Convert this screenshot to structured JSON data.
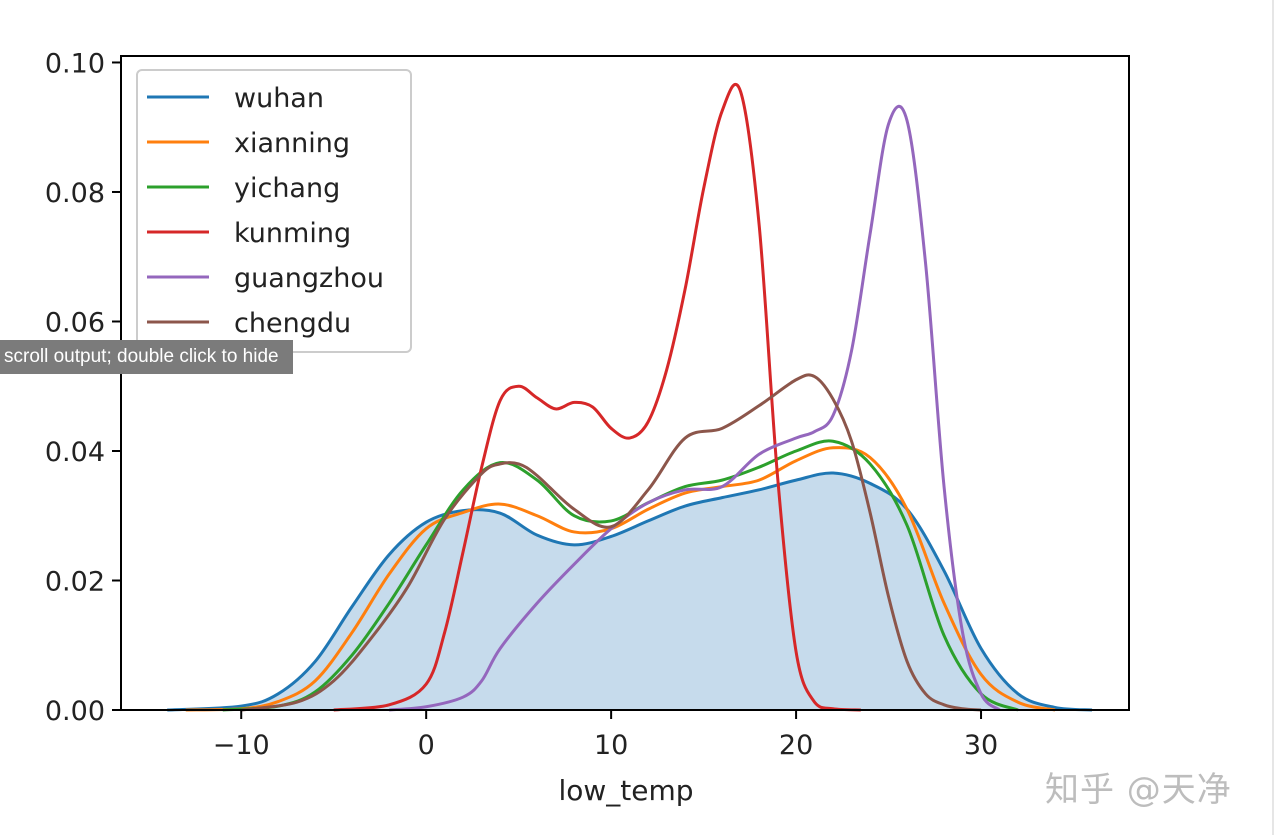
{
  "tooltip_text": "scroll output; double click to hide",
  "watermark_text": "知乎 @天净",
  "colors": {
    "wuhan": "#1f77b4",
    "xianning": "#ff7f0e",
    "yichang": "#2ca02c",
    "kunming": "#d62728",
    "guangzhou": "#9467bd",
    "chengdu": "#8c564b",
    "fill": "#c6dbec"
  },
  "chart_data": {
    "type": "line",
    "title": "",
    "xlabel": "low_temp",
    "ylabel": "",
    "xlim": [
      -16.5,
      38
    ],
    "ylim": [
      0,
      0.101
    ],
    "x_ticks": [
      -10,
      0,
      10,
      20,
      30
    ],
    "x_tick_labels": [
      "−10",
      "0",
      "10",
      "20",
      "30"
    ],
    "y_ticks": [
      0,
      0.02,
      0.04,
      0.06,
      0.08,
      0.1
    ],
    "y_tick_labels": [
      "0.00",
      "0.02",
      "0.04",
      "0.06",
      "0.08",
      "0.10"
    ],
    "grid": false,
    "legend_position": "top-left",
    "filled_series": "wuhan",
    "series": [
      {
        "name": "wuhan",
        "color": "#1f77b4",
        "x": [
          -14,
          -10,
          -8,
          -6,
          -4,
          -2,
          0,
          2,
          4,
          6,
          8,
          10,
          12,
          14,
          16,
          18,
          20,
          22,
          24,
          26,
          28,
          30,
          32,
          34,
          36
        ],
        "y": [
          0,
          0.0006,
          0.0025,
          0.0075,
          0.016,
          0.024,
          0.029,
          0.0308,
          0.0304,
          0.027,
          0.0255,
          0.0268,
          0.0292,
          0.0315,
          0.0328,
          0.034,
          0.0355,
          0.0366,
          0.035,
          0.031,
          0.0215,
          0.0095,
          0.0025,
          0.0004,
          0
        ]
      },
      {
        "name": "xianning",
        "color": "#ff7f0e",
        "x": [
          -13,
          -10,
          -8,
          -6,
          -4,
          -2,
          0,
          2,
          4,
          6,
          8,
          10,
          12,
          14,
          16,
          18,
          20,
          22,
          24,
          26,
          28,
          30,
          32,
          34
        ],
        "y": [
          0,
          0.0002,
          0.0013,
          0.0045,
          0.012,
          0.021,
          0.028,
          0.0305,
          0.0318,
          0.03,
          0.0275,
          0.028,
          0.031,
          0.0335,
          0.0345,
          0.0355,
          0.0385,
          0.0405,
          0.039,
          0.031,
          0.0165,
          0.0055,
          0.0012,
          0
        ]
      },
      {
        "name": "yichang",
        "color": "#2ca02c",
        "x": [
          -11,
          -8,
          -6,
          -4,
          -2,
          0,
          2,
          4,
          6,
          8,
          10,
          12,
          14,
          16,
          18,
          20,
          22,
          24,
          26,
          28,
          30,
          32
        ],
        "y": [
          0,
          0.0006,
          0.0028,
          0.0085,
          0.0165,
          0.0255,
          0.034,
          0.0382,
          0.0355,
          0.03,
          0.0292,
          0.032,
          0.0345,
          0.0355,
          0.0375,
          0.04,
          0.0415,
          0.038,
          0.0285,
          0.0115,
          0.0025,
          0
        ]
      },
      {
        "name": "kunming",
        "color": "#d62728",
        "x": [
          -5,
          -2,
          0,
          1,
          2,
          3,
          4,
          5,
          6,
          7,
          8,
          9,
          10,
          11,
          12,
          13,
          14,
          15,
          16,
          17,
          18,
          19,
          20,
          21,
          22,
          23.5
        ],
        "y": [
          0,
          0.0008,
          0.004,
          0.012,
          0.0245,
          0.0375,
          0.0478,
          0.05,
          0.0482,
          0.0465,
          0.0475,
          0.0468,
          0.0435,
          0.042,
          0.0445,
          0.0525,
          0.065,
          0.0805,
          0.0925,
          0.0955,
          0.075,
          0.036,
          0.009,
          0.0012,
          0.0002,
          0
        ]
      },
      {
        "name": "guangzhou",
        "color": "#9467bd",
        "x": [
          -2,
          0,
          2,
          3,
          4,
          6,
          8,
          10,
          12,
          14,
          16,
          18,
          20,
          21,
          22,
          23,
          24,
          25,
          26,
          27,
          28,
          29,
          30,
          31
        ],
        "y": [
          0,
          0.0005,
          0.002,
          0.0045,
          0.0095,
          0.0165,
          0.0225,
          0.028,
          0.032,
          0.034,
          0.0345,
          0.0395,
          0.042,
          0.043,
          0.0455,
          0.0555,
          0.0735,
          0.0905,
          0.091,
          0.069,
          0.0345,
          0.012,
          0.0025,
          0
        ]
      },
      {
        "name": "chengdu",
        "color": "#8c564b",
        "x": [
          -10,
          -7,
          -5,
          -3,
          -1,
          1,
          3,
          4,
          5,
          6,
          8,
          10,
          12,
          14,
          16,
          18,
          20,
          21,
          22,
          23,
          24,
          25,
          26,
          27,
          28,
          29,
          30
        ],
        "y": [
          0,
          0.0012,
          0.0045,
          0.011,
          0.019,
          0.0295,
          0.0365,
          0.038,
          0.038,
          0.0362,
          0.031,
          0.0283,
          0.034,
          0.042,
          0.0435,
          0.047,
          0.051,
          0.0515,
          0.048,
          0.0415,
          0.0305,
          0.0175,
          0.0075,
          0.0025,
          0.0008,
          0.0002,
          0
        ]
      }
    ]
  }
}
